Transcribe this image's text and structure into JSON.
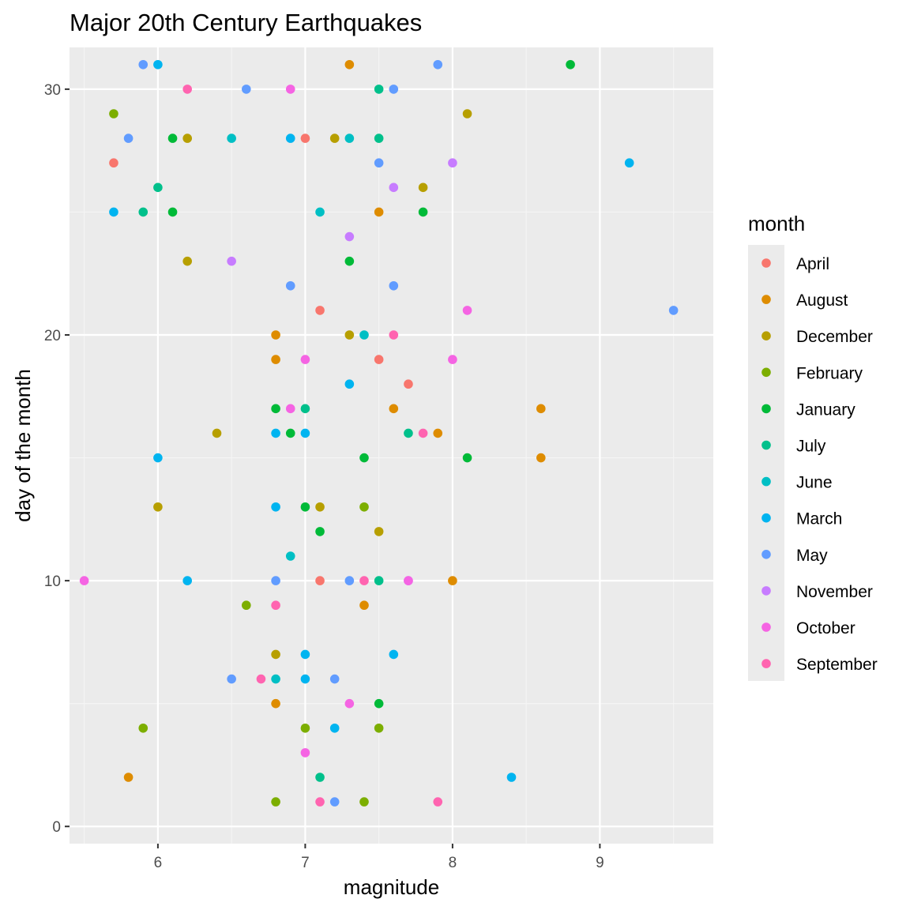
{
  "chart_data": {
    "type": "scatter",
    "title": "Major 20th Century Earthquakes",
    "xlabel": "magnitude",
    "ylabel": "day of the month",
    "xlim": [
      5.4,
      9.77
    ],
    "ylim": [
      -0.7,
      31.7
    ],
    "x_ticks": [
      6,
      7,
      8,
      9
    ],
    "y_ticks": [
      0,
      10,
      20,
      30
    ],
    "x_minor_ticks": [
      5.5,
      6.5,
      7.5,
      8.5,
      9.5
    ],
    "y_minor_ticks": [
      5,
      15,
      25
    ],
    "grid": true,
    "legend_position": "right",
    "legend_title": "month",
    "series": [
      {
        "name": "April",
        "color": "#F8766D",
        "points": [
          [
            5.7,
            27
          ],
          [
            7.0,
            28
          ],
          [
            7.1,
            21
          ],
          [
            7.5,
            19
          ],
          [
            7.7,
            18
          ],
          [
            7.1,
            10
          ]
        ]
      },
      {
        "name": "August",
        "color": "#DE8C00",
        "points": [
          [
            7.3,
            31
          ],
          [
            7.5,
            25
          ],
          [
            6.8,
            20
          ],
          [
            6.8,
            19
          ],
          [
            7.6,
            17
          ],
          [
            7.9,
            16
          ],
          [
            8.6,
            17
          ],
          [
            8.6,
            15
          ],
          [
            8.0,
            10
          ],
          [
            7.4,
            9
          ],
          [
            6.8,
            5
          ],
          [
            5.8,
            2
          ]
        ]
      },
      {
        "name": "December",
        "color": "#B79F00",
        "points": [
          [
            6.2,
            28
          ],
          [
            7.2,
            28
          ],
          [
            8.1,
            29
          ],
          [
            7.8,
            26
          ],
          [
            6.2,
            23
          ],
          [
            7.3,
            20
          ],
          [
            6.4,
            16
          ],
          [
            6.0,
            13
          ],
          [
            7.1,
            13
          ],
          [
            7.5,
            12
          ],
          [
            6.8,
            7
          ]
        ]
      },
      {
        "name": "February",
        "color": "#7CAE00",
        "points": [
          [
            5.7,
            29
          ],
          [
            6.6,
            9
          ],
          [
            5.9,
            4
          ],
          [
            7.0,
            4
          ],
          [
            7.5,
            4
          ],
          [
            6.8,
            1
          ],
          [
            7.4,
            1
          ],
          [
            7.4,
            13
          ]
        ]
      },
      {
        "name": "January",
        "color": "#00BA38",
        "points": [
          [
            8.8,
            31
          ],
          [
            6.1,
            28
          ],
          [
            6.1,
            25
          ],
          [
            7.8,
            25
          ],
          [
            7.3,
            23
          ],
          [
            6.8,
            17
          ],
          [
            6.9,
            16
          ],
          [
            7.4,
            15
          ],
          [
            8.1,
            15
          ],
          [
            7.0,
            13
          ],
          [
            7.1,
            12
          ],
          [
            7.5,
            5
          ]
        ]
      },
      {
        "name": "July",
        "color": "#00C08B",
        "points": [
          [
            7.5,
            30
          ],
          [
            7.5,
            28
          ],
          [
            6.0,
            26
          ],
          [
            5.9,
            25
          ],
          [
            7.0,
            17
          ],
          [
            7.7,
            16
          ],
          [
            7.5,
            10
          ],
          [
            7.1,
            2
          ]
        ]
      },
      {
        "name": "June",
        "color": "#00BFC4",
        "points": [
          [
            6.5,
            28
          ],
          [
            7.3,
            28
          ],
          [
            7.1,
            25
          ],
          [
            7.4,
            20
          ],
          [
            6.9,
            11
          ],
          [
            6.8,
            6
          ]
        ]
      },
      {
        "name": "March",
        "color": "#00B4F0",
        "points": [
          [
            6.0,
            31
          ],
          [
            6.9,
            28
          ],
          [
            5.7,
            25
          ],
          [
            9.2,
            27
          ],
          [
            7.3,
            18
          ],
          [
            6.8,
            16
          ],
          [
            7.0,
            16
          ],
          [
            6.0,
            15
          ],
          [
            6.8,
            13
          ],
          [
            6.2,
            10
          ],
          [
            7.0,
            7
          ],
          [
            7.6,
            7
          ],
          [
            7.0,
            6
          ],
          [
            7.2,
            4
          ],
          [
            8.4,
            2
          ]
        ]
      },
      {
        "name": "May",
        "color": "#619CFF",
        "points": [
          [
            5.9,
            31
          ],
          [
            7.9,
            31
          ],
          [
            6.6,
            30
          ],
          [
            7.6,
            30
          ],
          [
            5.8,
            28
          ],
          [
            7.5,
            27
          ],
          [
            6.9,
            22
          ],
          [
            7.6,
            22
          ],
          [
            9.5,
            21
          ],
          [
            6.8,
            10
          ],
          [
            7.3,
            10
          ],
          [
            6.5,
            6
          ],
          [
            7.2,
            6
          ],
          [
            7.2,
            1
          ]
        ]
      },
      {
        "name": "November",
        "color": "#C77CFF",
        "points": [
          [
            8.0,
            27
          ],
          [
            7.6,
            26
          ],
          [
            7.3,
            24
          ],
          [
            6.5,
            23
          ],
          [
            7.7,
            10
          ]
        ]
      },
      {
        "name": "October",
        "color": "#F564E3",
        "points": [
          [
            6.9,
            30
          ],
          [
            8.1,
            21
          ],
          [
            7.0,
            19
          ],
          [
            8.0,
            19
          ],
          [
            6.9,
            17
          ],
          [
            5.5,
            10
          ],
          [
            7.7,
            10
          ],
          [
            7.3,
            5
          ],
          [
            7.0,
            3
          ]
        ]
      },
      {
        "name": "September",
        "color": "#FF64B0",
        "points": [
          [
            6.2,
            30
          ],
          [
            7.6,
            20
          ],
          [
            7.8,
            16
          ],
          [
            7.4,
            10
          ],
          [
            6.8,
            9
          ],
          [
            6.7,
            6
          ],
          [
            7.1,
            1
          ],
          [
            7.9,
            1
          ]
        ]
      }
    ]
  },
  "colors": {
    "panel_background": "#EBEBEB",
    "grid_major": "#FFFFFF",
    "grid_minor": "#F5F5F5",
    "legend_key_background": "#EBEBEB",
    "tick_text": "#4D4D4D"
  }
}
